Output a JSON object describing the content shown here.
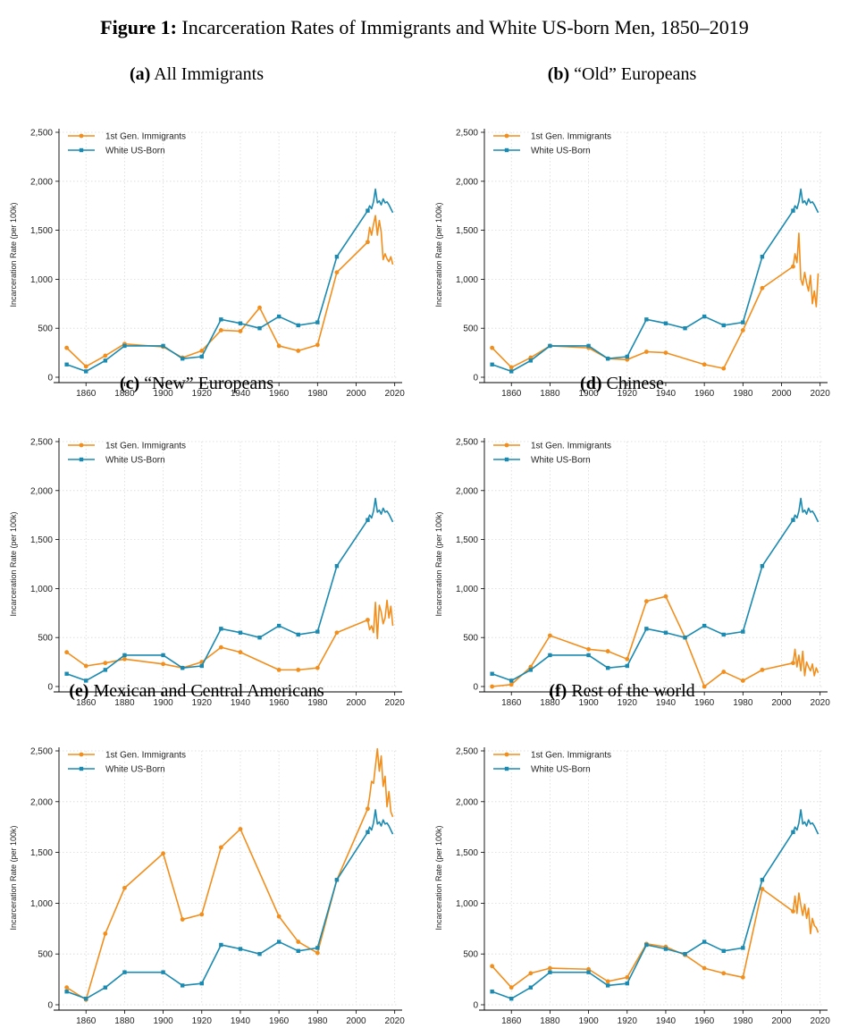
{
  "figure": {
    "label": "Figure 1:",
    "title": "Incarceration Rates of Immigrants and White US-born Men, 1850–2019"
  },
  "colors": {
    "immigrants": "#f28e1c",
    "white_us_born": "#1a8ab0"
  },
  "chart_data": [
    {
      "type": "line",
      "panel_label": "(a)",
      "title": "All Immigrants",
      "ylabel": "Incarceration Rate (per 100k)",
      "xlim": [
        1846,
        2022
      ],
      "ylim": [
        0,
        2500
      ],
      "xticks": [
        "1860",
        "1880",
        "1900",
        "1920",
        "1940",
        "1960",
        "1980",
        "2000",
        "2020"
      ],
      "yticks": [
        "0",
        "500",
        "1,000",
        "1,500",
        "2,000",
        "2,500"
      ],
      "grid": true,
      "legend": "top-left",
      "series": [
        {
          "name": "1st Gen. Immigrants",
          "x": [
            1850,
            1860,
            1870,
            1880,
            1900,
            1910,
            1920,
            1930,
            1940,
            1950,
            1960,
            1970,
            1980,
            1990,
            2006,
            2007,
            2008,
            2009,
            2010,
            2011,
            2012,
            2013,
            2014,
            2015,
            2016,
            2017,
            2018,
            2019
          ],
          "y": [
            300,
            110,
            220,
            340,
            310,
            200,
            270,
            480,
            470,
            710,
            320,
            270,
            330,
            1070,
            1380,
            1530,
            1450,
            1560,
            1650,
            1450,
            1600,
            1480,
            1200,
            1260,
            1210,
            1180,
            1230,
            1150
          ]
        },
        {
          "name": "White US-Born",
          "x": [
            1850,
            1860,
            1870,
            1880,
            1900,
            1910,
            1920,
            1930,
            1940,
            1950,
            1960,
            1970,
            1980,
            1990,
            2006,
            2007,
            2008,
            2009,
            2010,
            2011,
            2012,
            2013,
            2014,
            2015,
            2016,
            2017,
            2018,
            2019
          ],
          "y": [
            130,
            60,
            170,
            320,
            320,
            190,
            210,
            590,
            550,
            500,
            620,
            530,
            560,
            1230,
            1700,
            1750,
            1720,
            1790,
            1920,
            1780,
            1800,
            1760,
            1820,
            1780,
            1790,
            1760,
            1720,
            1680
          ]
        }
      ]
    },
    {
      "type": "line",
      "panel_label": "(b)",
      "title": "“Old” Europeans",
      "ylabel": "Incarceration Rate (per 100k)",
      "xlim": [
        1846,
        2022
      ],
      "ylim": [
        0,
        2500
      ],
      "xticks": [
        "1860",
        "1880",
        "1900",
        "1920",
        "1940",
        "1960",
        "1980",
        "2000",
        "2020"
      ],
      "yticks": [
        "0",
        "500",
        "1,000",
        "1,500",
        "2,000",
        "2,500"
      ],
      "grid": true,
      "legend": "top-left",
      "series": [
        {
          "name": "1st Gen. Immigrants",
          "x": [
            1850,
            1860,
            1870,
            1880,
            1900,
            1910,
            1920,
            1930,
            1940,
            1960,
            1970,
            1980,
            1990,
            2006,
            2007,
            2008,
            2009,
            2010,
            2011,
            2012,
            2013,
            2014,
            2015,
            2016,
            2017,
            2018,
            2019
          ],
          "y": [
            300,
            100,
            200,
            320,
            300,
            190,
            180,
            260,
            250,
            130,
            90,
            480,
            910,
            1130,
            1260,
            1170,
            1470,
            1000,
            940,
            1070,
            960,
            880,
            1040,
            750,
            880,
            720,
            1060
          ]
        },
        {
          "name": "White US-Born",
          "x": [
            1850,
            1860,
            1870,
            1880,
            1900,
            1910,
            1920,
            1930,
            1940,
            1950,
            1960,
            1970,
            1980,
            1990,
            2006,
            2007,
            2008,
            2009,
            2010,
            2011,
            2012,
            2013,
            2014,
            2015,
            2016,
            2017,
            2018,
            2019
          ],
          "y": [
            130,
            60,
            170,
            320,
            320,
            190,
            210,
            590,
            550,
            500,
            620,
            530,
            560,
            1230,
            1700,
            1750,
            1720,
            1790,
            1920,
            1780,
            1800,
            1760,
            1820,
            1780,
            1790,
            1760,
            1720,
            1680
          ]
        }
      ]
    },
    {
      "type": "line",
      "panel_label": "(c)",
      "title": "“New” Europeans",
      "ylabel": "Incarceration Rate (per 100k)",
      "xlim": [
        1846,
        2022
      ],
      "ylim": [
        0,
        2500
      ],
      "xticks": [
        "1860",
        "1880",
        "1900",
        "1920",
        "1940",
        "1960",
        "1980",
        "2000",
        "2020"
      ],
      "yticks": [
        "0",
        "500",
        "1,000",
        "1,500",
        "2,000",
        "2,500"
      ],
      "grid": true,
      "legend": "top-left",
      "series": [
        {
          "name": "1st Gen. Immigrants",
          "x": [
            1850,
            1860,
            1870,
            1880,
            1900,
            1910,
            1920,
            1930,
            1940,
            1960,
            1970,
            1980,
            1990,
            2006,
            2007,
            2008,
            2009,
            2010,
            2011,
            2012,
            2013,
            2014,
            2015,
            2016,
            2017,
            2018,
            2019
          ],
          "y": [
            350,
            210,
            240,
            280,
            230,
            190,
            250,
            400,
            350,
            170,
            170,
            190,
            550,
            680,
            580,
            620,
            550,
            860,
            490,
            830,
            760,
            640,
            700,
            880,
            700,
            820,
            620
          ]
        },
        {
          "name": "White US-Born",
          "x": [
            1850,
            1860,
            1870,
            1880,
            1900,
            1910,
            1920,
            1930,
            1940,
            1950,
            1960,
            1970,
            1980,
            1990,
            2006,
            2007,
            2008,
            2009,
            2010,
            2011,
            2012,
            2013,
            2014,
            2015,
            2016,
            2017,
            2018,
            2019
          ],
          "y": [
            130,
            60,
            170,
            320,
            320,
            190,
            210,
            590,
            550,
            500,
            620,
            530,
            560,
            1230,
            1700,
            1750,
            1720,
            1790,
            1920,
            1780,
            1800,
            1760,
            1820,
            1780,
            1790,
            1760,
            1720,
            1680
          ]
        }
      ]
    },
    {
      "type": "line",
      "panel_label": "(d)",
      "title": "Chinese",
      "ylabel": "Incarceration Rate (per 100k)",
      "xlim": [
        1846,
        2022
      ],
      "ylim": [
        0,
        2500
      ],
      "xticks": [
        "1860",
        "1880",
        "1900",
        "1920",
        "1940",
        "1960",
        "1980",
        "2000",
        "2020"
      ],
      "yticks": [
        "0",
        "500",
        "1,000",
        "1,500",
        "2,000",
        "2,500"
      ],
      "grid": true,
      "legend": "top-left",
      "series": [
        {
          "name": "1st Gen. Immigrants",
          "x": [
            1850,
            1860,
            1870,
            1880,
            1900,
            1910,
            1920,
            1930,
            1940,
            1950,
            1960,
            1970,
            1980,
            1990,
            2006,
            2007,
            2008,
            2009,
            2010,
            2011,
            2012,
            2013,
            2014,
            2015,
            2016,
            2017,
            2018,
            2019
          ],
          "y": [
            0,
            20,
            200,
            520,
            380,
            360,
            280,
            870,
            920,
            500,
            0,
            150,
            60,
            170,
            240,
            380,
            200,
            320,
            160,
            360,
            110,
            250,
            200,
            160,
            230,
            110,
            190,
            140
          ]
        },
        {
          "name": "White US-Born",
          "x": [
            1850,
            1860,
            1870,
            1880,
            1900,
            1910,
            1920,
            1930,
            1940,
            1950,
            1960,
            1970,
            1980,
            1990,
            2006,
            2007,
            2008,
            2009,
            2010,
            2011,
            2012,
            2013,
            2014,
            2015,
            2016,
            2017,
            2018,
            2019
          ],
          "y": [
            130,
            60,
            170,
            320,
            320,
            190,
            210,
            590,
            550,
            500,
            620,
            530,
            560,
            1230,
            1700,
            1750,
            1720,
            1790,
            1920,
            1780,
            1800,
            1760,
            1820,
            1780,
            1790,
            1760,
            1720,
            1680
          ]
        }
      ]
    },
    {
      "type": "line",
      "panel_label": "(e)",
      "title": "Mexican and Central Americans",
      "ylabel": "Incarceration Rate (per 100k)",
      "xlim": [
        1846,
        2022
      ],
      "ylim": [
        0,
        2500
      ],
      "xticks": [
        "1860",
        "1880",
        "1900",
        "1920",
        "1940",
        "1960",
        "1980",
        "2000",
        "2020"
      ],
      "yticks": [
        "0",
        "500",
        "1,000",
        "1,500",
        "2,000",
        "2,500"
      ],
      "grid": true,
      "legend": "top-left",
      "series": [
        {
          "name": "1st Gen. Immigrants",
          "x": [
            1850,
            1860,
            1870,
            1880,
            1900,
            1910,
            1920,
            1930,
            1940,
            1960,
            1970,
            1980,
            1990,
            2006,
            2007,
            2008,
            2009,
            2010,
            2011,
            2012,
            2013,
            2014,
            2015,
            2016,
            2017,
            2018,
            2019
          ],
          "y": [
            170,
            50,
            700,
            1150,
            1490,
            840,
            890,
            1550,
            1730,
            870,
            620,
            510,
            1230,
            1930,
            2050,
            2200,
            2180,
            2350,
            2520,
            2300,
            2450,
            2150,
            2250,
            1950,
            2100,
            1900,
            1850
          ]
        },
        {
          "name": "White US-Born",
          "x": [
            1850,
            1860,
            1870,
            1880,
            1900,
            1910,
            1920,
            1930,
            1940,
            1950,
            1960,
            1970,
            1980,
            1990,
            2006,
            2007,
            2008,
            2009,
            2010,
            2011,
            2012,
            2013,
            2014,
            2015,
            2016,
            2017,
            2018,
            2019
          ],
          "y": [
            130,
            60,
            170,
            320,
            320,
            190,
            210,
            590,
            550,
            500,
            620,
            530,
            560,
            1230,
            1700,
            1750,
            1720,
            1790,
            1920,
            1780,
            1800,
            1760,
            1820,
            1780,
            1790,
            1760,
            1720,
            1680
          ]
        }
      ]
    },
    {
      "type": "line",
      "panel_label": "(f)",
      "title": "Rest of the world",
      "ylabel": "Incarceration Rate (per 100k)",
      "xlim": [
        1846,
        2022
      ],
      "ylim": [
        0,
        2500
      ],
      "xticks": [
        "1860",
        "1880",
        "1900",
        "1920",
        "1940",
        "1960",
        "1980",
        "2000",
        "2020"
      ],
      "yticks": [
        "0",
        "500",
        "1,000",
        "1,500",
        "2,000",
        "2,500"
      ],
      "grid": true,
      "legend": "top-left",
      "series": [
        {
          "name": "1st Gen. Immigrants",
          "x": [
            1850,
            1860,
            1870,
            1880,
            1900,
            1910,
            1920,
            1930,
            1940,
            1950,
            1960,
            1970,
            1980,
            1990,
            2006,
            2007,
            2008,
            2009,
            2010,
            2011,
            2012,
            2013,
            2014,
            2015,
            2016,
            2017,
            2018,
            2019
          ],
          "y": [
            380,
            170,
            310,
            360,
            350,
            230,
            270,
            600,
            570,
            490,
            360,
            310,
            270,
            1140,
            920,
            1070,
            900,
            1100,
            980,
            880,
            990,
            850,
            950,
            700,
            850,
            780,
            760,
            710
          ]
        },
        {
          "name": "White US-Born",
          "x": [
            1850,
            1860,
            1870,
            1880,
            1900,
            1910,
            1920,
            1930,
            1940,
            1950,
            1960,
            1970,
            1980,
            1990,
            2006,
            2007,
            2008,
            2009,
            2010,
            2011,
            2012,
            2013,
            2014,
            2015,
            2016,
            2017,
            2018,
            2019
          ],
          "y": [
            130,
            60,
            170,
            320,
            320,
            190,
            210,
            590,
            550,
            500,
            620,
            530,
            560,
            1230,
            1700,
            1750,
            1720,
            1790,
            1920,
            1780,
            1800,
            1760,
            1820,
            1780,
            1790,
            1760,
            1720,
            1680
          ]
        }
      ]
    }
  ]
}
